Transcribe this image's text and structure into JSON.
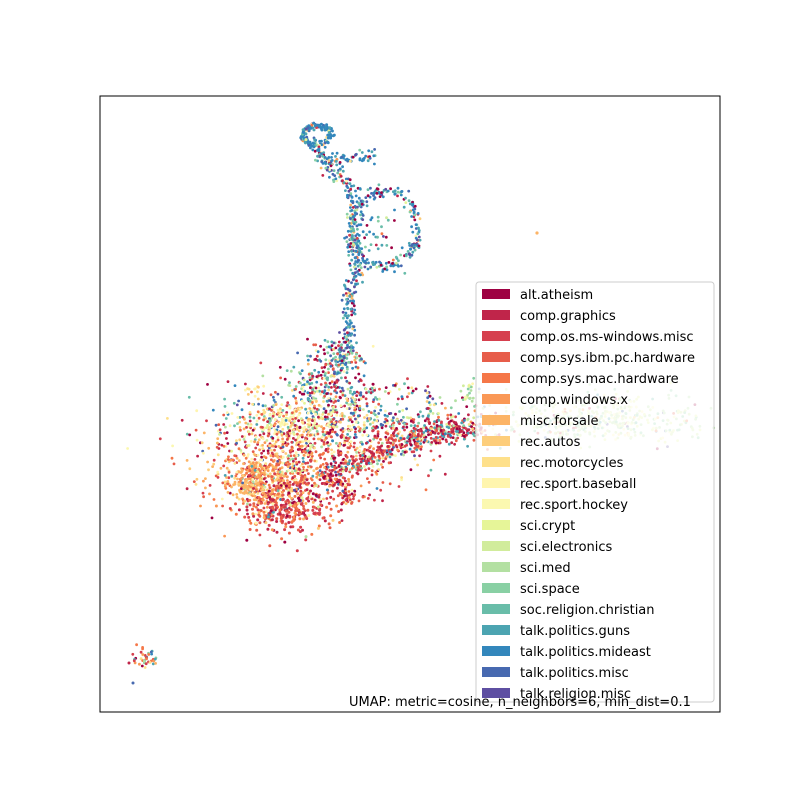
{
  "chart_data": {
    "type": "scatter",
    "title": "",
    "xlabel": "",
    "ylabel": "",
    "axes_ticks": false,
    "grid": false,
    "annotation": "UMAP: metric=cosine, n_neighbors=6, min_dist=0.1",
    "legend_position": "right",
    "series": [
      {
        "name": "alt.atheism",
        "color": "#9e0142"
      },
      {
        "name": "comp.graphics",
        "color": "#c0254a"
      },
      {
        "name": "comp.os.ms-windows.misc",
        "color": "#d6404e"
      },
      {
        "name": "comp.sys.ibm.pc.hardware",
        "color": "#e75d4a"
      },
      {
        "name": "comp.sys.mac.hardware",
        "color": "#f57748"
      },
      {
        "name": "comp.windows.x",
        "color": "#fa9856"
      },
      {
        "name": "misc.forsale",
        "color": "#fcb466"
      },
      {
        "name": "rec.autos",
        "color": "#fdcd7b"
      },
      {
        "name": "rec.motorcycles",
        "color": "#fee08b"
      },
      {
        "name": "rec.sport.baseball",
        "color": "#fff5ae"
      },
      {
        "name": "rec.sport.hockey",
        "color": "#fbf8b0"
      },
      {
        "name": "sci.crypt",
        "color": "#e6f598"
      },
      {
        "name": "sci.electronics",
        "color": "#d1ec9c"
      },
      {
        "name": "sci.med",
        "color": "#b3e0a2"
      },
      {
        "name": "sci.space",
        "color": "#89d0a4"
      },
      {
        "name": "soc.religion.christian",
        "color": "#69bda9"
      },
      {
        "name": "talk.politics.guns",
        "color": "#4ca4b1"
      },
      {
        "name": "talk.politics.mideast",
        "color": "#3387bc"
      },
      {
        "name": "talk.politics.misc",
        "color": "#4769b0"
      },
      {
        "name": "talk.religion.misc",
        "color": "#5e4fa2"
      }
    ]
  }
}
